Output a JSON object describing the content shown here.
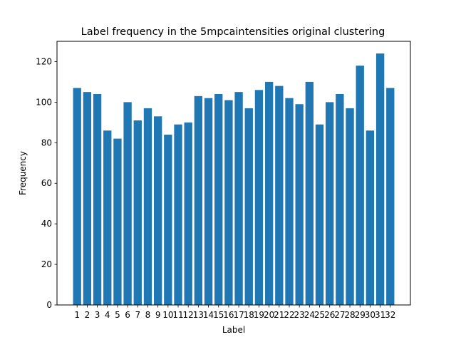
{
  "chart_data": {
    "type": "bar",
    "title": "Label frequency in the 5mpcaintensities original clustering",
    "xlabel": "Label",
    "ylabel": "Frequency",
    "categories": [
      "1",
      "2",
      "3",
      "4",
      "5",
      "6",
      "7",
      "8",
      "9",
      "10",
      "11",
      "12",
      "13",
      "14",
      "15",
      "16",
      "17",
      "18",
      "19",
      "20",
      "21",
      "22",
      "23",
      "24",
      "25",
      "26",
      "27",
      "28",
      "29",
      "30",
      "31",
      "32"
    ],
    "values": [
      107,
      105,
      104,
      86,
      82,
      100,
      91,
      97,
      93,
      84,
      89,
      90,
      103,
      102,
      104,
      101,
      105,
      97,
      106,
      110,
      108,
      102,
      99,
      110,
      89,
      100,
      104,
      97,
      118,
      86,
      124,
      107
    ],
    "ylim": [
      0,
      130
    ],
    "yticks": [
      0,
      20,
      40,
      60,
      80,
      100,
      120
    ],
    "bar_color": "#1f77b4",
    "grid": false,
    "legend": "none"
  }
}
